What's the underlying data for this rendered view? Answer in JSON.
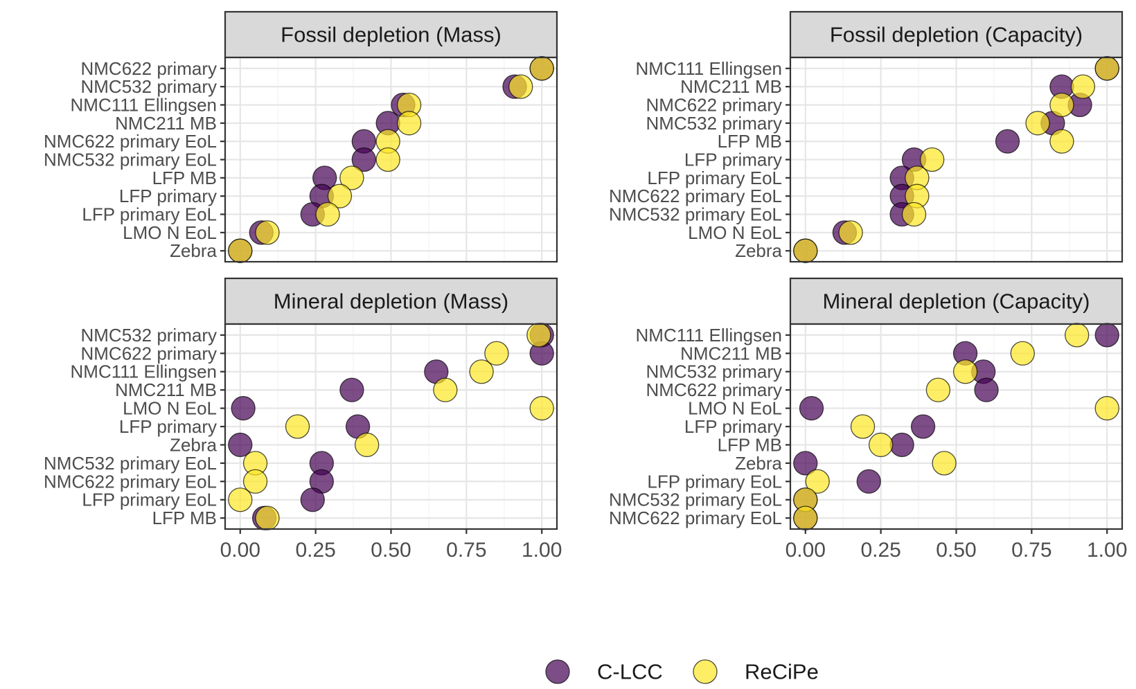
{
  "colors": {
    "C-LCC": "#440154",
    "ReCiPe": "#FDE725"
  },
  "legend": {
    "items": [
      {
        "name": "C-LCC",
        "color": "#440154"
      },
      {
        "name": "ReCiPe",
        "color": "#FDE725"
      }
    ]
  },
  "chart_data": [
    {
      "type": "scatter",
      "title": "Fossil depletion (Mass)",
      "xlim": [
        0,
        1
      ],
      "xticks": [
        "0.00",
        "0.25",
        "0.50",
        "0.75",
        "1.00"
      ],
      "categories": [
        "NMC622 primary",
        "NMC532 primary",
        "NMC111 Ellingsen",
        "NMC211 MB",
        "NMC622 primary EoL",
        "NMC532 primary EoL",
        "LFP MB",
        "LFP primary",
        "LFP primary EoL",
        "LMO N EoL",
        "Zebra"
      ],
      "series": [
        {
          "name": "C-LCC",
          "values": [
            1.0,
            0.91,
            0.54,
            0.49,
            0.41,
            0.41,
            0.28,
            0.27,
            0.24,
            0.07,
            0.0
          ]
        },
        {
          "name": "ReCiPe",
          "values": [
            1.0,
            0.93,
            0.56,
            0.56,
            0.49,
            0.49,
            0.37,
            0.33,
            0.29,
            0.09,
            0.0
          ]
        }
      ]
    },
    {
      "type": "scatter",
      "title": "Fossil depletion (Capacity)",
      "xlim": [
        0,
        1
      ],
      "xticks": [
        "0.00",
        "0.25",
        "0.50",
        "0.75",
        "1.00"
      ],
      "categories": [
        "NMC111 Ellingsen",
        "NMC211 MB",
        "NMC622 primary",
        "NMC532 primary",
        "LFP MB",
        "LFP primary",
        "LFP primary EoL",
        "NMC622 primary EoL",
        "NMC532 primary EoL",
        "LMO N EoL",
        "Zebra"
      ],
      "series": [
        {
          "name": "C-LCC",
          "values": [
            1.0,
            0.85,
            0.91,
            0.82,
            0.67,
            0.36,
            0.32,
            0.32,
            0.32,
            0.13,
            0.0
          ]
        },
        {
          "name": "ReCiPe",
          "values": [
            1.0,
            0.92,
            0.85,
            0.77,
            0.85,
            0.42,
            0.37,
            0.37,
            0.36,
            0.15,
            0.0
          ]
        }
      ]
    },
    {
      "type": "scatter",
      "title": "Mineral depletion (Mass)",
      "xlim": [
        0,
        1
      ],
      "xticks": [
        "0.00",
        "0.25",
        "0.50",
        "0.75",
        "1.00"
      ],
      "categories": [
        "NMC532 primary",
        "NMC622 primary",
        "NMC111 Ellingsen",
        "NMC211 MB",
        "LMO N EoL",
        "LFP primary",
        "Zebra",
        "NMC532 primary EoL",
        "NMC622 primary EoL",
        "LFP primary EoL",
        "LFP MB"
      ],
      "series": [
        {
          "name": "C-LCC",
          "values": [
            1.0,
            1.0,
            0.65,
            0.37,
            0.01,
            0.39,
            0.0,
            0.27,
            0.27,
            0.24,
            0.08
          ]
        },
        {
          "name": "ReCiPe",
          "values": [
            0.99,
            0.85,
            0.8,
            0.68,
            1.0,
            0.19,
            0.42,
            0.05,
            0.05,
            0.0,
            0.09
          ]
        }
      ]
    },
    {
      "type": "scatter",
      "title": "Mineral depletion (Capacity)",
      "xlim": [
        0,
        1
      ],
      "xticks": [
        "0.00",
        "0.25",
        "0.50",
        "0.75",
        "1.00"
      ],
      "categories": [
        "NMC111 Ellingsen",
        "NMC211 MB",
        "NMC532 primary",
        "NMC622 primary",
        "LMO N EoL",
        "LFP primary",
        "LFP MB",
        "Zebra",
        "LFP primary EoL",
        "NMC532 primary EoL",
        "NMC622 primary EoL"
      ],
      "series": [
        {
          "name": "C-LCC",
          "values": [
            1.0,
            0.53,
            0.59,
            0.6,
            0.02,
            0.39,
            0.32,
            0.0,
            0.21,
            0.0,
            0.0
          ]
        },
        {
          "name": "ReCiPe",
          "values": [
            0.9,
            0.72,
            0.53,
            0.44,
            1.0,
            0.19,
            0.25,
            0.46,
            0.04,
            0.0,
            0.0
          ]
        }
      ]
    }
  ]
}
